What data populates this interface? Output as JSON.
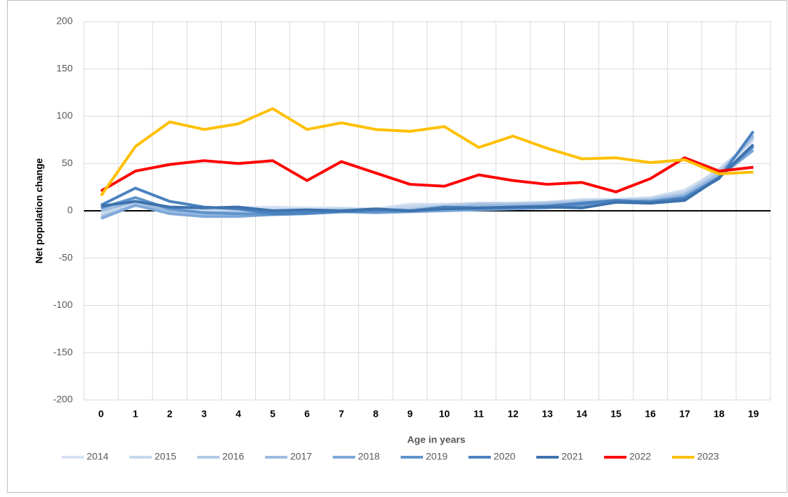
{
  "chart_data": {
    "type": "line",
    "x_label": "Age in years",
    "y_label": "Net population change",
    "categories": [
      "0",
      "1",
      "2",
      "3",
      "4",
      "5",
      "6",
      "7",
      "8",
      "9",
      "10",
      "11",
      "12",
      "13",
      "14",
      "15",
      "16",
      "17",
      "18",
      "19"
    ],
    "ylim": [
      -200,
      200
    ],
    "yticks": [
      -200,
      -150,
      -100,
      -50,
      0,
      50,
      100,
      150,
      200
    ],
    "grid": true,
    "legend": "bottom",
    "series": [
      {
        "name": "2014",
        "color": "#d6e2f1",
        "values": [
          -2,
          5,
          2,
          3,
          3,
          4,
          3,
          3,
          2,
          7,
          7,
          8,
          8,
          9,
          12,
          12,
          14,
          22,
          42,
          70
        ]
      },
      {
        "name": "2015",
        "color": "#c5d7ec",
        "values": [
          -4,
          8,
          0,
          1,
          1,
          2,
          1,
          2,
          1,
          5,
          6,
          8,
          8,
          9,
          11,
          12,
          13,
          20,
          44,
          75
        ]
      },
      {
        "name": "2016",
        "color": "#b0c9e6",
        "values": [
          -6,
          6,
          -2,
          -2,
          -1,
          0,
          0,
          1,
          0,
          2,
          5,
          7,
          7,
          8,
          10,
          11,
          12,
          18,
          40,
          78
        ]
      },
      {
        "name": "2017",
        "color": "#9dbbe0",
        "values": [
          0,
          10,
          0,
          -3,
          -3,
          -2,
          -1,
          0,
          0,
          0,
          3,
          6,
          6,
          7,
          9,
          10,
          11,
          17,
          38,
          80
        ]
      },
      {
        "name": "2018",
        "color": "#7fa8d9",
        "values": [
          -8,
          6,
          -3,
          -6,
          -6,
          -4,
          -3,
          -1,
          -2,
          -1,
          0,
          1,
          2,
          3,
          6,
          9,
          9,
          15,
          36,
          64
        ]
      },
      {
        "name": "2019",
        "color": "#5f94cc",
        "values": [
          3,
          14,
          2,
          -2,
          -3,
          -4,
          -3,
          -1,
          -1,
          0,
          2,
          2,
          3,
          4,
          7,
          10,
          10,
          14,
          35,
          68
        ]
      },
      {
        "name": "2020",
        "color": "#4a82bf",
        "values": [
          6,
          24,
          10,
          4,
          2,
          -3,
          -2,
          -1,
          1,
          0,
          4,
          3,
          4,
          5,
          8,
          11,
          9,
          13,
          34,
          84
        ]
      },
      {
        "name": "2021",
        "color": "#3d72ad",
        "values": [
          5,
          10,
          4,
          3,
          4,
          0,
          1,
          0,
          2,
          0,
          2,
          3,
          4,
          4,
          3,
          9,
          8,
          11,
          35,
          70
        ]
      },
      {
        "name": "2022",
        "color": "#ff0000",
        "values": [
          21,
          42,
          49,
          53,
          50,
          53,
          32,
          52,
          40,
          28,
          26,
          38,
          32,
          28,
          30,
          20,
          34,
          56,
          42,
          46
        ]
      },
      {
        "name": "2023",
        "color": "#ffc000",
        "values": [
          16,
          68,
          94,
          86,
          92,
          108,
          86,
          93,
          86,
          84,
          89,
          67,
          79,
          66,
          55,
          56,
          51,
          54,
          39,
          41
        ]
      }
    ]
  }
}
